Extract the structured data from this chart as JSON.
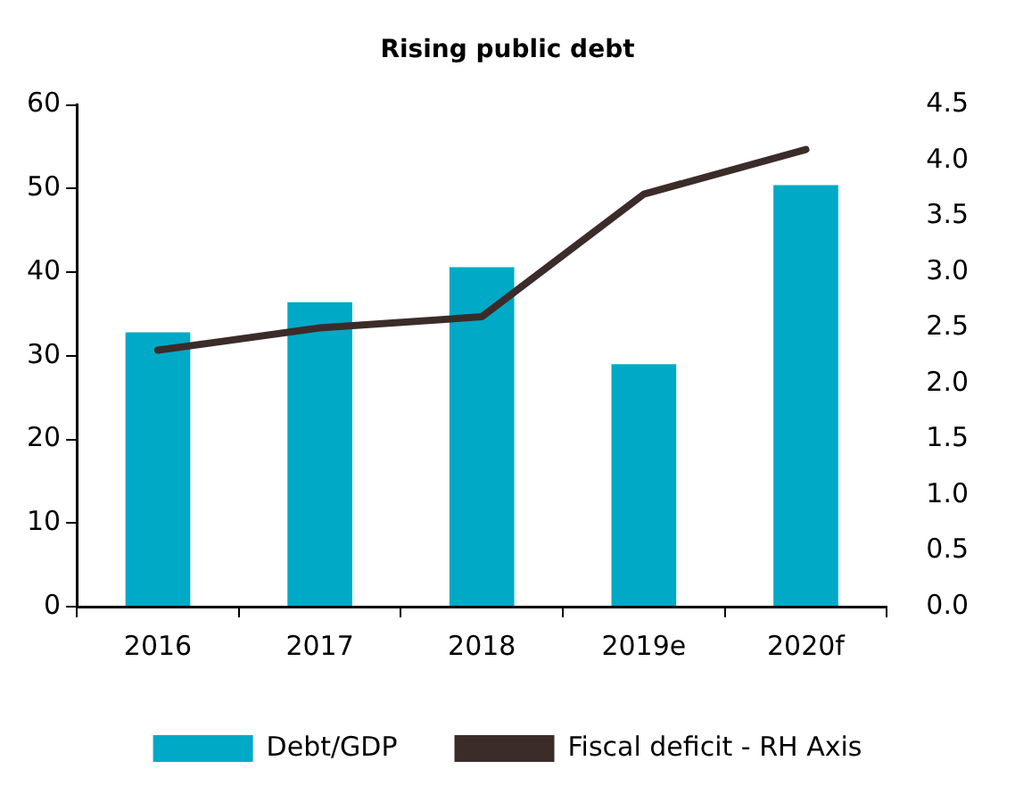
{
  "chart_data": {
    "type": "bar",
    "title": "Rising public debt",
    "categories": [
      "2016",
      "2017",
      "2018",
      "2019e",
      "2020f"
    ],
    "series": [
      {
        "name": "Debt/GDP",
        "color": "#00a9c6",
        "values": [
          32.8,
          36.4,
          40.6,
          29.0,
          50.4
        ]
      },
      {
        "name": "Fiscal deficit - RH Axis",
        "type": "line",
        "axis": "y2",
        "color": "#3b2c2a",
        "values": [
          2.3,
          2.5,
          2.6,
          3.7,
          4.1
        ]
      }
    ],
    "ylim": [
      0,
      60
    ],
    "yticks": [
      0,
      10,
      20,
      30,
      40,
      50,
      60
    ],
    "y2lim": [
      0,
      4.5
    ],
    "y2ticks": [
      {
        "value": 0,
        "label": "0.0"
      },
      {
        "value": 0.5,
        "label": "0.5"
      },
      {
        "value": 1,
        "label": "1.0"
      },
      {
        "value": 1.5,
        "label": "1.5"
      },
      {
        "value": 2,
        "label": "2.0"
      },
      {
        "value": 2.5,
        "label": "2.5"
      },
      {
        "value": 3,
        "label": "3.0"
      },
      {
        "value": 3.5,
        "label": "3.5"
      },
      {
        "value": 4,
        "label": "4.0"
      },
      {
        "value": 4.5,
        "label": "4.5"
      }
    ],
    "grid": false,
    "legend": "bottom",
    "marker": "none"
  }
}
